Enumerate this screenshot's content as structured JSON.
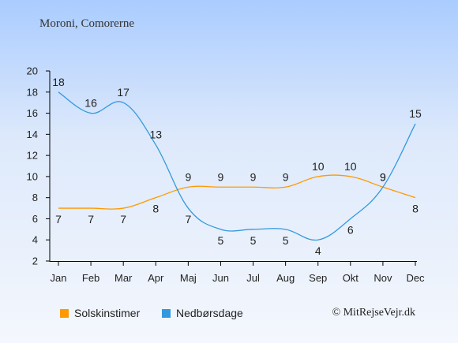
{
  "title": "Moroni, Comorerne",
  "copyright": "© MitRejseVejr.dk",
  "chart_data": {
    "type": "line",
    "categories": [
      "Jan",
      "Feb",
      "Mar",
      "Apr",
      "Maj",
      "Jun",
      "Jul",
      "Aug",
      "Sep",
      "Okt",
      "Nov",
      "Dec"
    ],
    "ylim": [
      2,
      20
    ],
    "yticks": [
      2,
      4,
      6,
      8,
      10,
      12,
      14,
      16,
      18,
      20
    ],
    "grid": false,
    "legend_position": "bottom-left",
    "series": [
      {
        "name": "Solskinstimer",
        "color": "#ff9900",
        "values": [
          7,
          7,
          7,
          8,
          9,
          9,
          9,
          9,
          10,
          10,
          9,
          8
        ]
      },
      {
        "name": "Nedbørsdage",
        "color": "#3399dd",
        "values": [
          18,
          16,
          17,
          13,
          7,
          5,
          5,
          5,
          4,
          6,
          9,
          15
        ]
      }
    ]
  }
}
